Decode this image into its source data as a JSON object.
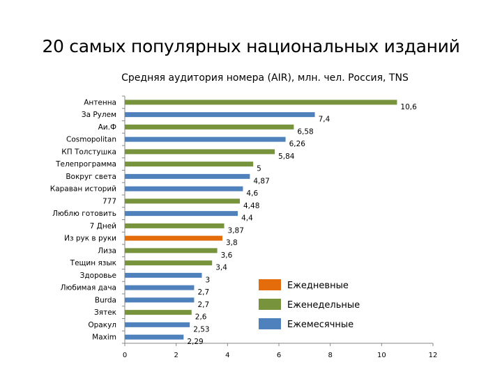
{
  "title": "20 самых популярных национальных изданий",
  "subtitle": "Средняя аудитория номера (AIR), млн. чел. Россия, TNS",
  "colors": {
    "daily": "#e46c0a",
    "weekly": "#77933c",
    "monthly": "#4f81bd",
    "axis": "#868686"
  },
  "chart_data": {
    "type": "bar",
    "orientation": "horizontal",
    "title": "20 самых популярных национальных изданий",
    "subtitle": "Средняя аудитория номера (AIR), млн. чел. Россия, TNS",
    "xlim": [
      0,
      12
    ],
    "xticks": [
      0,
      2,
      4,
      6,
      8,
      10,
      12
    ],
    "xtick_labels": [
      "0",
      "2",
      "4",
      "6",
      "8",
      "10",
      "12"
    ],
    "grid": false,
    "legend_position": "bottom-right-inside",
    "legend": [
      {
        "key": "daily",
        "label": "Ежедневные"
      },
      {
        "key": "weekly",
        "label": "Еженедельные"
      },
      {
        "key": "monthly",
        "label": "Ежемесячные"
      }
    ],
    "bars": [
      {
        "category": "Антенна",
        "value": 10.6,
        "label": "10,6",
        "type": "weekly"
      },
      {
        "category": "За Рулем",
        "value": 7.4,
        "label": "7,4",
        "type": "monthly"
      },
      {
        "category": "Аи.Ф",
        "value": 6.58,
        "label": "6,58",
        "type": "weekly"
      },
      {
        "category": "Cosmopolitan",
        "value": 6.26,
        "label": "6,26",
        "type": "monthly"
      },
      {
        "category": "КП Толстушка",
        "value": 5.84,
        "label": "5,84",
        "type": "weekly"
      },
      {
        "category": "Телепрограмма",
        "value": 5,
        "label": "5",
        "type": "weekly"
      },
      {
        "category": "Вокруг света",
        "value": 4.87,
        "label": "4,87",
        "type": "monthly"
      },
      {
        "category": "Караван историй",
        "value": 4.6,
        "label": "4,6",
        "type": "monthly"
      },
      {
        "category": "777",
        "value": 4.48,
        "label": "4,48",
        "type": "weekly"
      },
      {
        "category": "Люблю готовить",
        "value": 4.4,
        "label": "4,4",
        "type": "monthly"
      },
      {
        "category": "7 Дней",
        "value": 3.87,
        "label": "3,87",
        "type": "weekly"
      },
      {
        "category": "Из рук в руки",
        "value": 3.8,
        "label": "3,8",
        "type": "daily"
      },
      {
        "category": "Лиза",
        "value": 3.6,
        "label": "3,6",
        "type": "weekly"
      },
      {
        "category": "Тещин язык",
        "value": 3.4,
        "label": "3,4",
        "type": "weekly"
      },
      {
        "category": "Здоровье",
        "value": 3,
        "label": "3",
        "type": "monthly"
      },
      {
        "category": "Любимая дача",
        "value": 2.7,
        "label": "2,7",
        "type": "monthly"
      },
      {
        "category": "Burda",
        "value": 2.7,
        "label": "2,7",
        "type": "monthly"
      },
      {
        "category": "Зятек",
        "value": 2.6,
        "label": "2,6",
        "type": "weekly"
      },
      {
        "category": "Оракул",
        "value": 2.53,
        "label": "2,53",
        "type": "monthly"
      },
      {
        "category": "Maxim",
        "value": 2.29,
        "label": "2,29",
        "type": "monthly"
      }
    ]
  }
}
